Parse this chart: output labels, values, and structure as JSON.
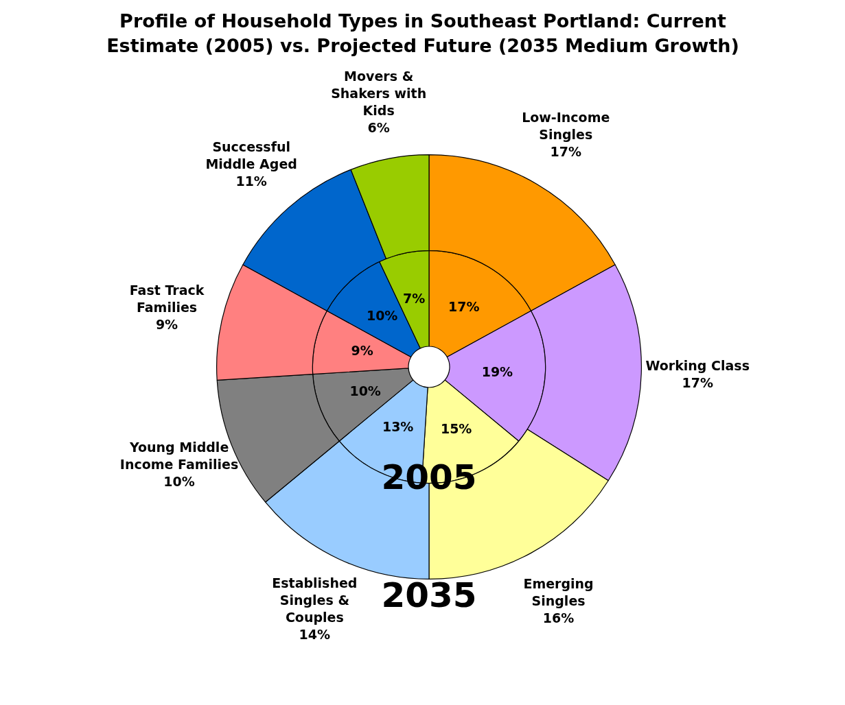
{
  "chart_data": {
    "type": "donut",
    "title": "Profile of Household Types in Southeast Portland: Current Estimate (2005) vs. Projected Future (2035 Medium Growth)",
    "categories": [
      "Low-Income Singles",
      "Working Class",
      "Emerging Singles",
      "Established Singles & Couples",
      "Young Middle Income Families",
      "Fast Track Families",
      "Successful Middle Aged",
      "Movers & Shakers with Kids"
    ],
    "colors": [
      "#ff9900",
      "#cc99ff",
      "#ffff99",
      "#99ccff",
      "#808080",
      "#ff8080",
      "#0066cc",
      "#99cc00"
    ],
    "series": [
      {
        "name": "2035",
        "values": [
          17,
          17,
          16,
          14,
          10,
          9,
          11,
          6
        ],
        "value_labels": [
          "17%",
          "17%",
          "16%",
          "14%",
          "10%",
          "9%",
          "11%",
          "6%"
        ]
      },
      {
        "name": "2005",
        "values": [
          17,
          19,
          15,
          13,
          10,
          9,
          10,
          7
        ],
        "value_labels": [
          "17%",
          "19%",
          "15%",
          "13%",
          "10%",
          "9%",
          "10%",
          "7%"
        ]
      }
    ],
    "legend": false
  }
}
